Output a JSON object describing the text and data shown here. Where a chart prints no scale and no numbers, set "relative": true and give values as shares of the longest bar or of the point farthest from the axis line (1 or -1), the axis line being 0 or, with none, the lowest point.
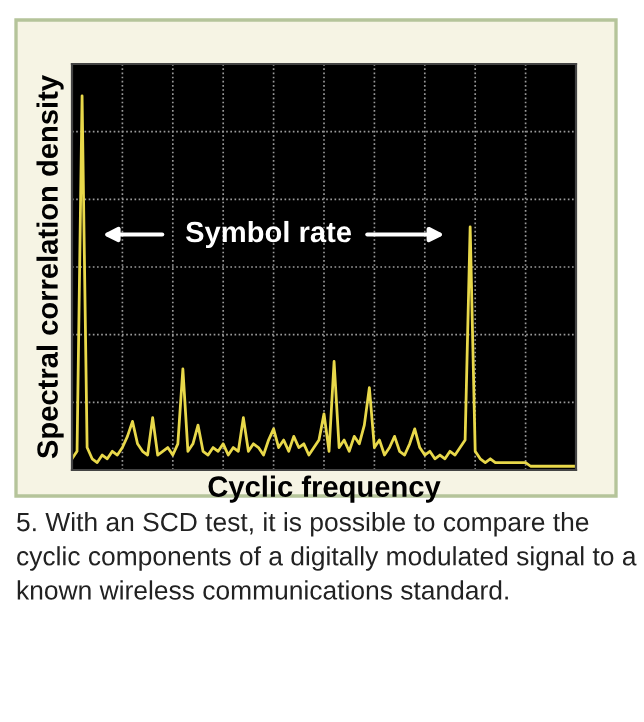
{
  "chart_data": {
    "type": "line",
    "relative": true,
    "xlabel": "Cyclic frequency",
    "ylabel": "Spectral correlation density",
    "categories": [
      null,
      null,
      null,
      null,
      null,
      null,
      null,
      null,
      null,
      null,
      null,
      null,
      null,
      null,
      null,
      null,
      null,
      null,
      null,
      null,
      null,
      null,
      null,
      null,
      null,
      null,
      null,
      null,
      null,
      null,
      null,
      null,
      null,
      null,
      null,
      null,
      null,
      null,
      null,
      null,
      null,
      null,
      null,
      null,
      null,
      null,
      null,
      null,
      null,
      null,
      null,
      null,
      null,
      null,
      null,
      null,
      null,
      null,
      null,
      null,
      null,
      null,
      null,
      null,
      null,
      null,
      null,
      null,
      null,
      null,
      null,
      null,
      null,
      null,
      null,
      null,
      null,
      null,
      null,
      null,
      null,
      null,
      null,
      null,
      null,
      null,
      null,
      null,
      null,
      null,
      null,
      null,
      null,
      null,
      null,
      null,
      null,
      null,
      null,
      null,
      null
    ],
    "series": [
      {
        "color": "#e8d84a",
        "values": [
          0.03,
          0.05,
          1.0,
          0.06,
          0.03,
          0.02,
          0.04,
          0.03,
          0.05,
          0.04,
          0.06,
          0.09,
          0.13,
          0.07,
          0.05,
          0.04,
          0.14,
          0.04,
          0.05,
          0.06,
          0.04,
          0.07,
          0.27,
          0.05,
          0.07,
          0.12,
          0.05,
          0.04,
          0.06,
          0.05,
          0.07,
          0.04,
          0.06,
          0.05,
          0.14,
          0.05,
          0.07,
          0.06,
          0.04,
          0.08,
          0.11,
          0.06,
          0.08,
          0.05,
          0.09,
          0.06,
          0.07,
          0.04,
          0.06,
          0.08,
          0.15,
          0.05,
          0.29,
          0.06,
          0.08,
          0.05,
          0.09,
          0.07,
          0.12,
          0.22,
          0.06,
          0.08,
          0.04,
          0.06,
          0.09,
          0.05,
          0.04,
          0.07,
          0.11,
          0.06,
          0.04,
          0.05,
          0.03,
          0.04,
          0.03,
          0.05,
          0.04,
          0.06,
          0.08,
          0.65,
          0.05,
          0.03,
          0.02,
          0.03,
          0.02,
          0.02,
          0.02,
          0.02,
          0.02,
          0.02,
          0.02,
          0.01,
          0.01,
          0.01,
          0.01,
          0.01,
          0.01,
          0.01,
          0.01,
          0.01,
          0.01
        ]
      }
    ],
    "grid": true,
    "annotations": [
      "Symbol rate",
      "5. With an SCD test, it is possible to compare the cyclic components of a digitally modulated signal to a known wireless communications standard."
    ]
  }
}
